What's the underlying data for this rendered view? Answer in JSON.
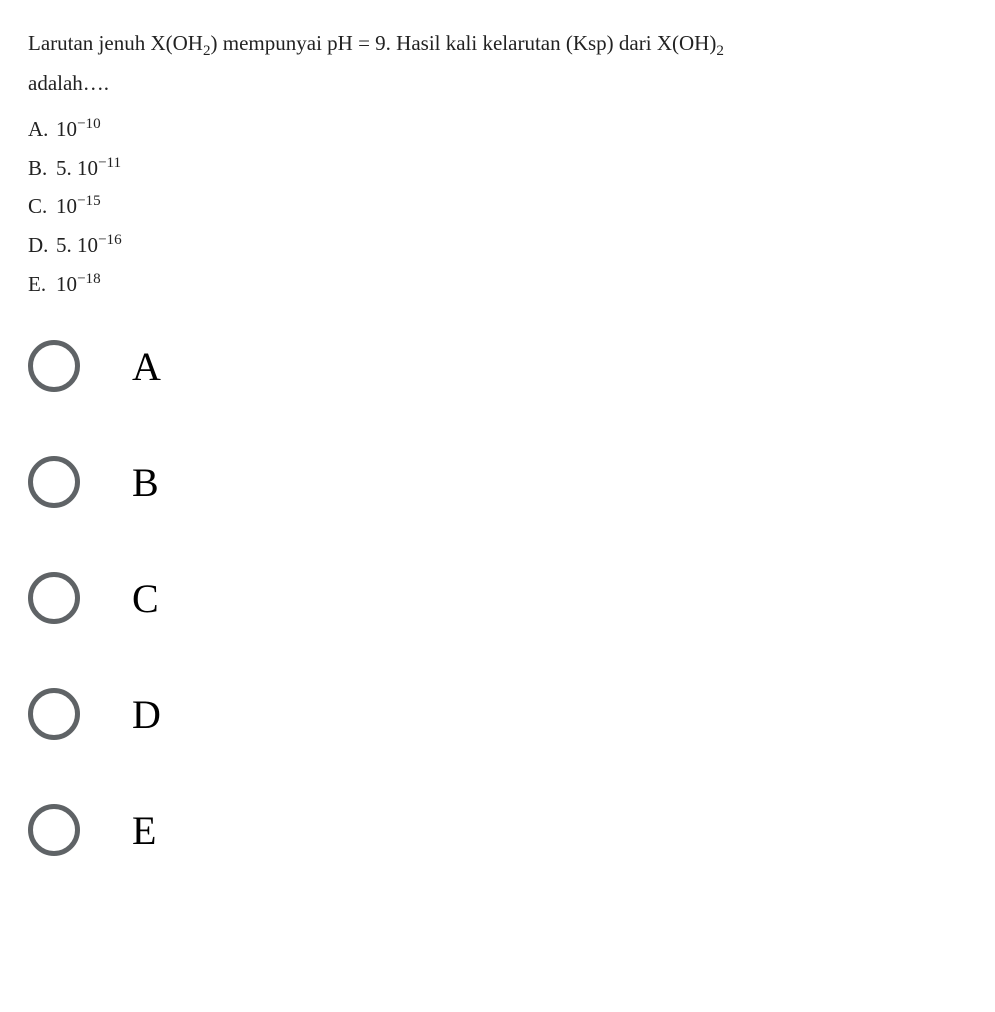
{
  "question": {
    "line1_pre": "Larutan jenuh  X(OH",
    "line1_sub1": "2",
    "line1_mid": ") mempunyai pH = 9. Hasil kali kelarutan (Ksp) dari X(OH)",
    "line1_sub2": "2",
    "line2": "adalah…."
  },
  "answers": [
    {
      "letter": "A.",
      "prefix": "10",
      "sup": "−10",
      "suffix": ""
    },
    {
      "letter": "B.",
      "prefix": "5. 10",
      "sup": "−11",
      "suffix": ""
    },
    {
      "letter": "C.",
      "prefix": "10",
      "sup": "−15",
      "suffix": ""
    },
    {
      "letter": "D.",
      "prefix": "5. 10",
      "sup": "−16",
      "suffix": ""
    },
    {
      "letter": "E.",
      "prefix": "10",
      "sup": "−18",
      "suffix": ""
    }
  ],
  "radio_options": [
    {
      "label": "A"
    },
    {
      "label": "B"
    },
    {
      "label": "C"
    },
    {
      "label": "D"
    },
    {
      "label": "E"
    }
  ],
  "colors": {
    "text": "#222222",
    "background": "#ffffff",
    "radio_border": "#5f6366",
    "radio_label": "#000000"
  }
}
